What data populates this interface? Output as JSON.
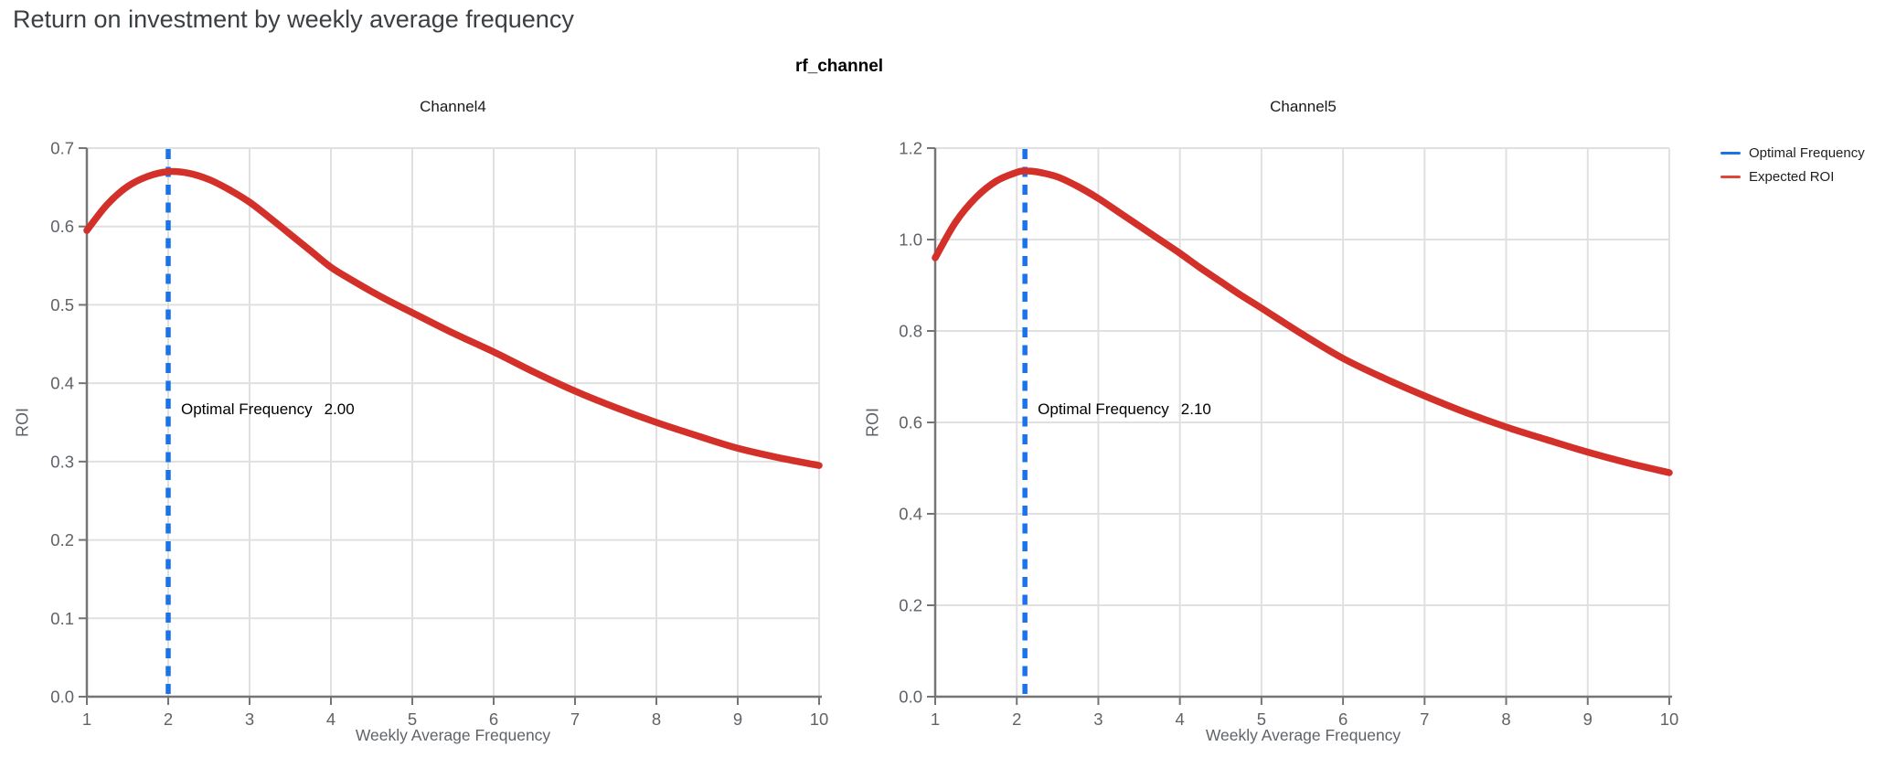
{
  "title": "Return on investment by weekly average frequency",
  "facet_title": "rf_channel",
  "legend": {
    "items": [
      {
        "label": "Optimal Frequency",
        "color": "#1a73e8"
      },
      {
        "label": "Expected ROI",
        "color": "#e0453a"
      }
    ]
  },
  "colors": {
    "roi_line": "#d3302a",
    "optimal_line": "#1a73e8",
    "grid": "#e0e0e0",
    "axis": "#757575",
    "tick_label": "#5f6368",
    "annotation": "#000000",
    "page_title": "#3c4043"
  },
  "chart_data": [
    {
      "type": "line",
      "title": "Channel4",
      "xlabel": "Weekly Average Frequency",
      "ylabel": "ROI",
      "xlim": [
        1,
        10
      ],
      "ylim": [
        0,
        0.7
      ],
      "grid": true,
      "x_ticks": [
        {
          "v": 1,
          "label": "1"
        },
        {
          "v": 2,
          "label": "2"
        },
        {
          "v": 3,
          "label": "3"
        },
        {
          "v": 4,
          "label": "4"
        },
        {
          "v": 5,
          "label": "5"
        },
        {
          "v": 6,
          "label": "6"
        },
        {
          "v": 7,
          "label": "7"
        },
        {
          "v": 8,
          "label": "8"
        },
        {
          "v": 9,
          "label": "9"
        },
        {
          "v": 10,
          "label": "10"
        }
      ],
      "y_ticks": [
        {
          "v": 0.0,
          "label": "0.0"
        },
        {
          "v": 0.1,
          "label": "0.1"
        },
        {
          "v": 0.2,
          "label": "0.2"
        },
        {
          "v": 0.3,
          "label": "0.3"
        },
        {
          "v": 0.4,
          "label": "0.4"
        },
        {
          "v": 0.5,
          "label": "0.5"
        },
        {
          "v": 0.6,
          "label": "0.6"
        },
        {
          "v": 0.7,
          "label": "0.7"
        }
      ],
      "optimal_frequency": 2.0,
      "annotation": {
        "label": "Optimal Frequency",
        "value": "2.00"
      },
      "series": [
        {
          "name": "Expected ROI",
          "x": [
            1,
            1.25,
            1.5,
            1.75,
            2,
            2.25,
            2.5,
            2.75,
            3,
            3.25,
            3.5,
            3.75,
            4,
            4.25,
            4.5,
            4.75,
            5,
            5.5,
            6,
            6.5,
            7,
            7.5,
            8,
            8.5,
            9,
            9.5,
            10
          ],
          "y": [
            0.595,
            0.628,
            0.651,
            0.664,
            0.67,
            0.668,
            0.66,
            0.647,
            0.631,
            0.611,
            0.59,
            0.569,
            0.548,
            0.532,
            0.517,
            0.503,
            0.49,
            0.464,
            0.44,
            0.414,
            0.39,
            0.369,
            0.35,
            0.333,
            0.317,
            0.305,
            0.295
          ]
        }
      ]
    },
    {
      "type": "line",
      "title": "Channel5",
      "xlabel": "Weekly Average Frequency",
      "ylabel": "ROI",
      "xlim": [
        1,
        10
      ],
      "ylim": [
        0,
        1.2
      ],
      "grid": true,
      "x_ticks": [
        {
          "v": 1,
          "label": "1"
        },
        {
          "v": 2,
          "label": "2"
        },
        {
          "v": 3,
          "label": "3"
        },
        {
          "v": 4,
          "label": "4"
        },
        {
          "v": 5,
          "label": "5"
        },
        {
          "v": 6,
          "label": "6"
        },
        {
          "v": 7,
          "label": "7"
        },
        {
          "v": 8,
          "label": "8"
        },
        {
          "v": 9,
          "label": "9"
        },
        {
          "v": 10,
          "label": "10"
        }
      ],
      "y_ticks": [
        {
          "v": 0.0,
          "label": "0.0"
        },
        {
          "v": 0.2,
          "label": "0.2"
        },
        {
          "v": 0.4,
          "label": "0.4"
        },
        {
          "v": 0.6,
          "label": "0.6"
        },
        {
          "v": 0.8,
          "label": "0.8"
        },
        {
          "v": 1.0,
          "label": "1.0"
        },
        {
          "v": 1.2,
          "label": "1.2"
        }
      ],
      "optimal_frequency": 2.1,
      "annotation": {
        "label": "Optimal Frequency",
        "value": "2.10"
      },
      "series": [
        {
          "name": "Expected ROI",
          "x": [
            1,
            1.25,
            1.5,
            1.75,
            2,
            2.1,
            2.25,
            2.5,
            2.75,
            3,
            3.25,
            3.5,
            3.75,
            4,
            4.25,
            4.5,
            4.75,
            5,
            5.5,
            6,
            6.5,
            7,
            7.5,
            8,
            8.5,
            9,
            9.5,
            10
          ],
          "y": [
            0.96,
            1.038,
            1.092,
            1.128,
            1.147,
            1.15,
            1.148,
            1.137,
            1.116,
            1.09,
            1.06,
            1.03,
            1.0,
            0.97,
            0.938,
            0.908,
            0.878,
            0.85,
            0.793,
            0.74,
            0.697,
            0.658,
            0.622,
            0.59,
            0.562,
            0.535,
            0.511,
            0.49
          ]
        }
      ]
    }
  ]
}
